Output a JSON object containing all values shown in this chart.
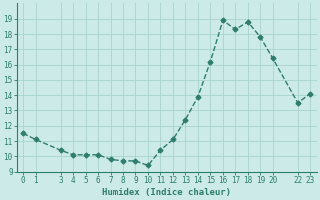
{
  "xlabel": "Humidex (Indice chaleur)",
  "ylabel": "",
  "background_color": "#cceae7",
  "line_color": "#2e7d6e",
  "grid_color": "#aad4cf",
  "x_values": [
    0,
    1,
    3,
    4,
    5,
    6,
    7,
    8,
    9,
    10,
    11,
    12,
    13,
    14,
    15,
    16,
    17,
    18,
    19,
    20,
    22,
    23
  ],
  "y_values": [
    11.5,
    11.1,
    10.4,
    10.1,
    10.1,
    10.1,
    9.8,
    9.7,
    9.7,
    9.4,
    10.4,
    11.1,
    12.4,
    13.9,
    16.2,
    18.9,
    18.3,
    18.8,
    17.8,
    16.4,
    13.5,
    14.1
  ],
  "ylim": [
    9,
    20
  ],
  "xlim": [
    -0.5,
    23.5
  ],
  "yticks": [
    9,
    10,
    11,
    12,
    13,
    14,
    15,
    16,
    17,
    18,
    19
  ],
  "xtick_positions": [
    0,
    1,
    3,
    4,
    5,
    6,
    7,
    8,
    9,
    10,
    11,
    12,
    13,
    14,
    15,
    16,
    17,
    18,
    19,
    20,
    22,
    23
  ],
  "xtick_labels": [
    "0",
    "1",
    "3",
    "4",
    "5",
    "6",
    "7",
    "8",
    "9",
    "10",
    "11",
    "12",
    "13",
    "14",
    "15",
    "16",
    "17",
    "18",
    "19",
    "20",
    "22",
    "23"
  ],
  "marker": "D",
  "marker_size": 2.5,
  "line_width": 1.0,
  "axis_fontsize": 6.5,
  "tick_fontsize": 5.5,
  "xlabel_fontsize": 6.5,
  "ylabel_fontsize": 6.5
}
